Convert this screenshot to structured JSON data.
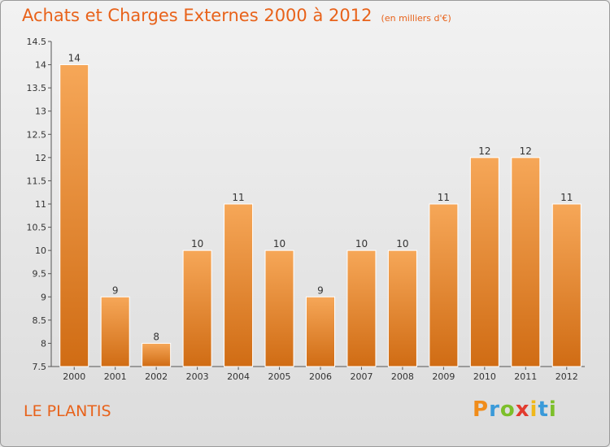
{
  "title": "Achats et Charges Externes 2000 à 2012",
  "subtitle": "(en milliers d'€)",
  "place": "LE PLANTIS",
  "brand": {
    "letters": [
      "P",
      "r",
      "o",
      "x",
      "i",
      "t",
      "i"
    ],
    "colors": [
      "#f08c1a",
      "#3a9ad9",
      "#7cbf2a",
      "#e23b2e",
      "#f0b81a",
      "#3a9ad9",
      "#7cbf2a"
    ]
  },
  "colors": {
    "accent": "#e8621a",
    "bar_light": "#f5a55a",
    "bar_dark": "#d4741e"
  },
  "chart_data": {
    "type": "bar",
    "title": "Achats et Charges Externes 2000 à 2012",
    "subtitle": "(en milliers d'€)",
    "categories": [
      "2000",
      "2001",
      "2002",
      "2003",
      "2004",
      "2005",
      "2006",
      "2007",
      "2008",
      "2009",
      "2010",
      "2011",
      "2012"
    ],
    "values": [
      14,
      9,
      8,
      10,
      11,
      10,
      9,
      10,
      10,
      11,
      12,
      12,
      11
    ],
    "data_labels": [
      "14",
      "9",
      "8",
      "10",
      "11",
      "10",
      "9",
      "10",
      "10",
      "11",
      "12",
      "12",
      "11"
    ],
    "ylim": [
      7.5,
      14.5
    ],
    "yticks": [
      7.5,
      8,
      8.5,
      9,
      9.5,
      10,
      10.5,
      11,
      11.5,
      12,
      12.5,
      13,
      13.5,
      14,
      14.5
    ],
    "ytick_labels": [
      "7.5",
      "8",
      "8.5",
      "9",
      "9.5",
      "10",
      "10.5",
      "11",
      "11.5",
      "12",
      "12.5",
      "13",
      "13.5",
      "14",
      "14.5"
    ],
    "grid": false,
    "legend": "none"
  }
}
